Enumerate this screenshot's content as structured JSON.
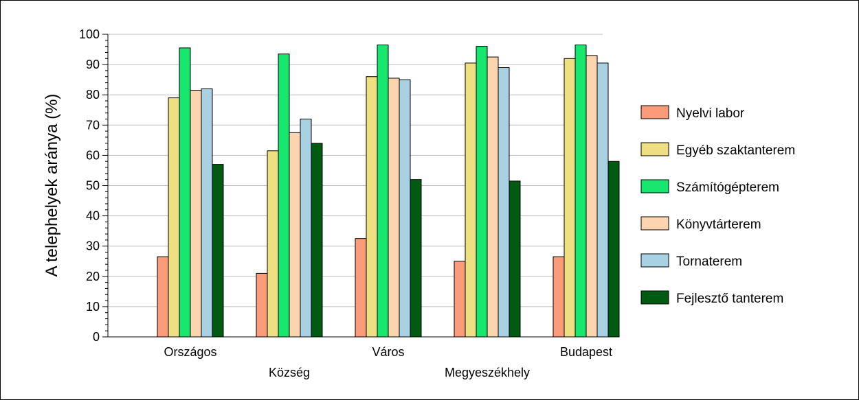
{
  "chart_data": {
    "type": "bar",
    "ylabel": "A telephelyek aránya (%)",
    "xlabel": "",
    "ylim": [
      0,
      100
    ],
    "yticks": [
      0,
      10,
      20,
      30,
      40,
      50,
      60,
      70,
      80,
      90,
      100
    ],
    "grid": true,
    "legend_position": "right",
    "categories": [
      "Országos",
      "Község",
      "Város",
      "Megyeszékhely",
      "Budapest"
    ],
    "series": [
      {
        "name": "Nyelvi labor",
        "color": "#FA9B7A",
        "values": [
          26.5,
          21,
          32.5,
          25,
          26.5
        ]
      },
      {
        "name": "Egyéb szaktanterem",
        "color": "#EEE082",
        "values": [
          79,
          61.5,
          86,
          90.5,
          92
        ]
      },
      {
        "name": "Számítógépterem",
        "color": "#18E66E",
        "values": [
          95.5,
          93.5,
          96.5,
          96,
          96.5
        ]
      },
      {
        "name": "Könyvtárterem",
        "color": "#FDD4B0",
        "values": [
          81.5,
          67.5,
          85.5,
          92.5,
          93
        ]
      },
      {
        "name": "Tornaterem",
        "color": "#A8D1E3",
        "values": [
          82,
          72,
          85,
          89,
          90.5
        ]
      },
      {
        "name": "Fejlesztő tanterem",
        "color": "#005A12",
        "values": [
          57,
          64,
          52,
          51.5,
          58
        ]
      }
    ]
  }
}
